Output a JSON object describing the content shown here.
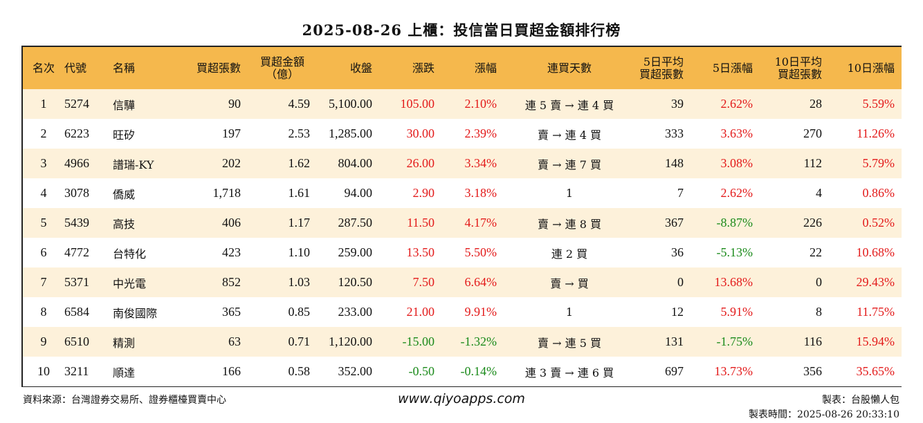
{
  "title": "2025-08-26 上櫃：投信當日買超金額排行榜",
  "headers": {
    "rank": "名次",
    "code": "代號",
    "name": "名稱",
    "buy_lots": "買超張數",
    "buy_amount_l1": "買超金額",
    "buy_amount_l2": "（億）",
    "close": "收盤",
    "change": "漲跌",
    "change_pct": "漲幅",
    "streak": "連買天數",
    "avg5_l1": "5日平均",
    "avg5_l2": "買超張數",
    "pct5": "5日漲幅",
    "avg10_l1": "10日平均",
    "avg10_l2": "買超張數",
    "pct10": "10日漲幅"
  },
  "rows": [
    {
      "rank": "1",
      "code": "5274",
      "name": "信驊",
      "buy_lots": "90",
      "buy_amount": "4.59",
      "close": "5,100.00",
      "change": "105.00",
      "change_pct": "2.10%",
      "streak": "連 5 賣 → 連 4 買",
      "avg5": "39",
      "pct5": "2.62%",
      "avg10": "28",
      "pct10": "5.59%",
      "chg_color": "red",
      "p5_color": "red",
      "p10_color": "red"
    },
    {
      "rank": "2",
      "code": "6223",
      "name": "旺矽",
      "buy_lots": "197",
      "buy_amount": "2.53",
      "close": "1,285.00",
      "change": "30.00",
      "change_pct": "2.39%",
      "streak": "賣 → 連 4 買",
      "avg5": "333",
      "pct5": "3.63%",
      "avg10": "270",
      "pct10": "11.26%",
      "chg_color": "red",
      "p5_color": "red",
      "p10_color": "red"
    },
    {
      "rank": "3",
      "code": "4966",
      "name": "譜瑞-KY",
      "buy_lots": "202",
      "buy_amount": "1.62",
      "close": "804.00",
      "change": "26.00",
      "change_pct": "3.34%",
      "streak": "賣 → 連 7 買",
      "avg5": "148",
      "pct5": "3.08%",
      "avg10": "112",
      "pct10": "5.79%",
      "chg_color": "red",
      "p5_color": "red",
      "p10_color": "red"
    },
    {
      "rank": "4",
      "code": "3078",
      "name": "僑威",
      "buy_lots": "1,718",
      "buy_amount": "1.61",
      "close": "94.00",
      "change": "2.90",
      "change_pct": "3.18%",
      "streak": "1",
      "avg5": "7",
      "pct5": "2.62%",
      "avg10": "4",
      "pct10": "0.86%",
      "chg_color": "red",
      "p5_color": "red",
      "p10_color": "red"
    },
    {
      "rank": "5",
      "code": "5439",
      "name": "高技",
      "buy_lots": "406",
      "buy_amount": "1.17",
      "close": "287.50",
      "change": "11.50",
      "change_pct": "4.17%",
      "streak": "賣 → 連 8 買",
      "avg5": "367",
      "pct5": "-8.87%",
      "avg10": "226",
      "pct10": "0.52%",
      "chg_color": "red",
      "p5_color": "green",
      "p10_color": "red"
    },
    {
      "rank": "6",
      "code": "4772",
      "name": "台特化",
      "buy_lots": "423",
      "buy_amount": "1.10",
      "close": "259.00",
      "change": "13.50",
      "change_pct": "5.50%",
      "streak": "連 2 買",
      "avg5": "36",
      "pct5": "-5.13%",
      "avg10": "22",
      "pct10": "10.68%",
      "chg_color": "red",
      "p5_color": "green",
      "p10_color": "red"
    },
    {
      "rank": "7",
      "code": "5371",
      "name": "中光電",
      "buy_lots": "852",
      "buy_amount": "1.03",
      "close": "120.50",
      "change": "7.50",
      "change_pct": "6.64%",
      "streak": "賣 → 買",
      "avg5": "0",
      "pct5": "13.68%",
      "avg10": "0",
      "pct10": "29.43%",
      "chg_color": "red",
      "p5_color": "red",
      "p10_color": "red"
    },
    {
      "rank": "8",
      "code": "6584",
      "name": "南俊國際",
      "buy_lots": "365",
      "buy_amount": "0.85",
      "close": "233.00",
      "change": "21.00",
      "change_pct": "9.91%",
      "streak": "1",
      "avg5": "12",
      "pct5": "5.91%",
      "avg10": "8",
      "pct10": "11.75%",
      "chg_color": "red",
      "p5_color": "red",
      "p10_color": "red"
    },
    {
      "rank": "9",
      "code": "6510",
      "name": "精測",
      "buy_lots": "63",
      "buy_amount": "0.71",
      "close": "1,120.00",
      "change": "-15.00",
      "change_pct": "-1.32%",
      "streak": "賣 → 連 5 買",
      "avg5": "131",
      "pct5": "-1.75%",
      "avg10": "116",
      "pct10": "15.94%",
      "chg_color": "green",
      "p5_color": "green",
      "p10_color": "red"
    },
    {
      "rank": "10",
      "code": "3211",
      "name": "順達",
      "buy_lots": "166",
      "buy_amount": "0.58",
      "close": "352.00",
      "change": "-0.50",
      "change_pct": "-0.14%",
      "streak": "連 3 賣 → 連 6 買",
      "avg5": "697",
      "pct5": "13.73%",
      "avg10": "356",
      "pct10": "35.65%",
      "chg_color": "green",
      "p5_color": "red",
      "p10_color": "red"
    }
  ],
  "footer": {
    "source": "資料來源：台灣證券交易所、證券櫃檯買賣中心",
    "website": "www.qiyoapps.com",
    "author": "製表：台股懶人包",
    "made_time": "製表時間：2025-08-26 20:33:10"
  },
  "colors": {
    "header_bg": "#f5b84d",
    "odd_row_bg": "#fdf1da",
    "up": "#e31a1a",
    "down": "#1a8a1a"
  }
}
